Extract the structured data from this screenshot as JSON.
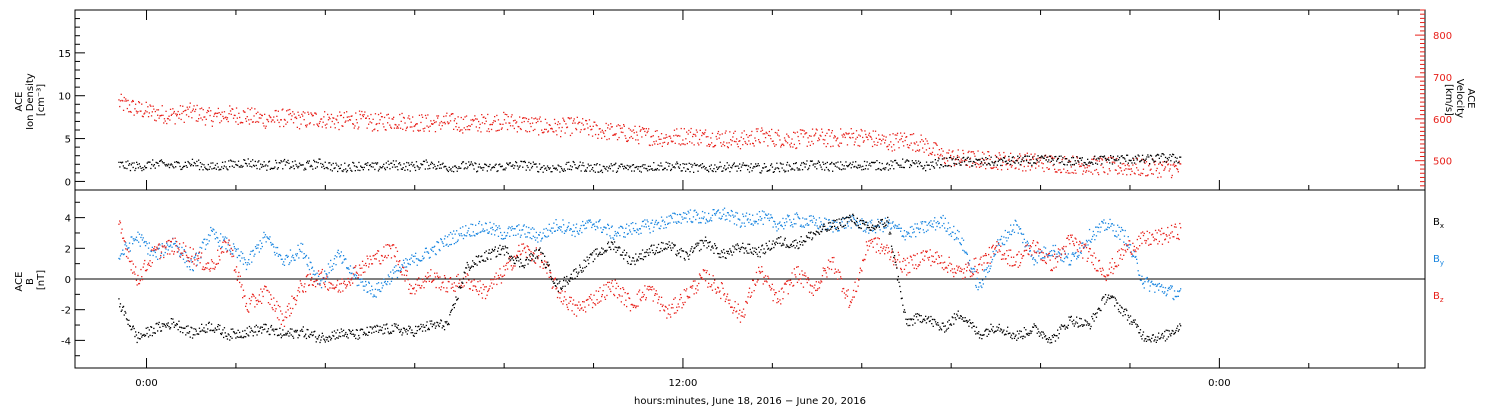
{
  "chart_data": [
    {
      "type": "scatter",
      "panel": "top",
      "ylabel_left": [
        "ACE",
        "Ion Density",
        "[cm⁻³]"
      ],
      "ylabel_right": [
        "ACE",
        "Velocity",
        "[km/s]"
      ],
      "ylim_left": [
        -1,
        20
      ],
      "ylim_right": [
        430,
        860
      ],
      "yticks_left": [
        0,
        5,
        10,
        15
      ],
      "yticks_right": [
        500,
        600,
        700,
        800
      ],
      "series": [
        {
          "axis": "left",
          "color": "#000000",
          "x": [
            -2,
            -1,
            0,
            1,
            2,
            3,
            4,
            5,
            6,
            7,
            8,
            9,
            10,
            11,
            12,
            13,
            14,
            15,
            16,
            17,
            18,
            19,
            20,
            21,
            22,
            23,
            24,
            25,
            26,
            27,
            28,
            29,
            30,
            31,
            32,
            33,
            34,
            35,
            36,
            37,
            38,
            39,
            40,
            41,
            42,
            43,
            44,
            45,
            46,
            47,
            48,
            49,
            50,
            51,
            52,
            53,
            54,
            55,
            56
          ],
          "y": [
            2.0,
            1.8,
            2.1,
            1.9,
            2.2,
            1.7,
            2.0,
            2.3,
            1.9,
            2.1,
            1.8,
            2.2,
            1.6,
            1.9,
            1.7,
            2.0,
            1.8,
            2.1,
            1.7,
            1.9,
            1.6,
            1.8,
            2.0,
            1.7,
            1.6,
            1.9,
            1.6,
            1.7,
            1.6,
            1.8,
            1.9,
            1.7,
            1.6,
            1.8,
            1.7,
            1.6,
            1.7,
            1.8,
            2.0,
            1.8,
            1.9,
            2.0,
            1.9,
            2.2,
            1.8,
            2.3,
            2.4,
            2.3,
            2.4,
            2.5,
            2.5,
            2.6,
            2.4,
            2.5,
            2.6,
            2.7,
            2.6,
            2.8,
            2.7
          ]
        },
        {
          "axis": "right",
          "color": "#e8201a",
          "x": [
            -2,
            -1,
            0,
            1,
            2,
            3,
            4,
            5,
            6,
            7,
            8,
            9,
            10,
            11,
            12,
            13,
            14,
            15,
            16,
            17,
            18,
            19,
            20,
            21,
            22,
            23,
            24,
            25,
            26,
            27,
            28,
            29,
            30,
            31,
            32,
            33,
            34,
            35,
            36,
            37,
            38,
            39,
            40,
            41,
            42,
            43,
            44,
            45,
            46,
            47,
            48,
            49,
            50,
            51,
            52,
            53,
            54,
            55,
            56
          ],
          "y": [
            640,
            625,
            615,
            610,
            618,
            605,
            612,
            608,
            600,
            604,
            598,
            602,
            596,
            600,
            592,
            598,
            594,
            590,
            595,
            588,
            592,
            596,
            590,
            584,
            580,
            585,
            575,
            570,
            565,
            560,
            555,
            562,
            558,
            555,
            550,
            560,
            556,
            552,
            558,
            554,
            560,
            556,
            545,
            552,
            540,
            512,
            506,
            504,
            502,
            500,
            498,
            495,
            493,
            490,
            488,
            486,
            485,
            483,
            482
          ]
        }
      ]
    },
    {
      "type": "scatter",
      "panel": "bottom",
      "ylabel": [
        "ACE",
        "B",
        "[nT]"
      ],
      "ylim": [
        -5.8,
        5.8
      ],
      "yticks": [
        -4,
        -2,
        0,
        2,
        4
      ],
      "legend": [
        {
          "label": "B",
          "sub": "x",
          "color": "#000000"
        },
        {
          "label": "B",
          "sub": "y",
          "color": "#1a86e0"
        },
        {
          "label": "B",
          "sub": "z",
          "color": "#e8201a"
        }
      ],
      "legend_position": "right",
      "series": [
        {
          "name": "Bx",
          "color": "#000000",
          "x": [
            -2,
            -1,
            0,
            1,
            2,
            3,
            4,
            5,
            6,
            7,
            8,
            9,
            10,
            11,
            12,
            13,
            14,
            15,
            16,
            17,
            18,
            19,
            20,
            21,
            22,
            23,
            24,
            25,
            26,
            27,
            28,
            29,
            30,
            31,
            32,
            33,
            34,
            35,
            36,
            37,
            38,
            39,
            40,
            41,
            42,
            43,
            44,
            45,
            46,
            47,
            48,
            49,
            50,
            51,
            52,
            53,
            54,
            55,
            56
          ],
          "y": [
            -1.5,
            -3.8,
            -3.2,
            -2.8,
            -3.5,
            -3.0,
            -3.6,
            -3.4,
            -3.2,
            -3.6,
            -3.4,
            -3.8,
            -3.5,
            -3.6,
            -3.3,
            -3.2,
            -3.4,
            -3.0,
            -2.9,
            0.8,
            1.5,
            2.0,
            1.0,
            1.8,
            -0.5,
            0.5,
            1.6,
            2.3,
            1.2,
            1.9,
            2.2,
            1.5,
            2.5,
            1.6,
            2.1,
            1.8,
            2.5,
            2.3,
            3.0,
            3.5,
            4.0,
            3.3,
            3.8,
            -2.8,
            -2.4,
            -3.2,
            -2.2,
            -3.6,
            -3.0,
            -3.7,
            -3.2,
            -3.9,
            -2.6,
            -3.0,
            -1.0,
            -2.2,
            -3.7,
            -3.8,
            -3.0
          ]
        },
        {
          "name": "By",
          "color": "#1a86e0",
          "x": [
            -2,
            -1,
            0,
            1,
            2,
            3,
            4,
            5,
            6,
            7,
            8,
            9,
            10,
            11,
            12,
            13,
            14,
            15,
            16,
            17,
            18,
            19,
            20,
            21,
            22,
            23,
            24,
            25,
            26,
            27,
            28,
            29,
            30,
            31,
            32,
            33,
            34,
            35,
            36,
            37,
            38,
            39,
            40,
            41,
            42,
            43,
            44,
            45,
            46,
            47,
            48,
            49,
            50,
            51,
            52,
            53,
            54,
            55,
            56
          ],
          "y": [
            1.5,
            2.8,
            1.6,
            2.5,
            0.8,
            3.0,
            2.2,
            1.0,
            2.8,
            1.2,
            2.0,
            -0.2,
            1.6,
            0.0,
            -0.8,
            0.4,
            1.2,
            1.8,
            2.6,
            3.2,
            3.4,
            3.0,
            3.2,
            2.8,
            3.6,
            3.2,
            3.7,
            3.0,
            3.3,
            3.5,
            3.8,
            4.2,
            4.0,
            4.3,
            3.8,
            4.1,
            3.6,
            3.9,
            3.7,
            3.5,
            3.8,
            3.4,
            3.6,
            3.0,
            3.4,
            3.8,
            2.6,
            -0.6,
            2.2,
            3.6,
            1.4,
            2.0,
            1.2,
            2.8,
            3.6,
            2.8,
            -0.2,
            -0.6,
            -1.0
          ]
        },
        {
          "name": "Bz",
          "color": "#e8201a",
          "x": [
            -2,
            -1,
            0,
            1,
            2,
            3,
            4,
            5,
            6,
            7,
            8,
            9,
            10,
            11,
            12,
            13,
            14,
            15,
            16,
            17,
            18,
            19,
            20,
            21,
            22,
            23,
            24,
            25,
            26,
            27,
            28,
            29,
            30,
            31,
            32,
            33,
            34,
            35,
            36,
            37,
            38,
            39,
            40,
            41,
            42,
            43,
            44,
            45,
            46,
            47,
            48,
            49,
            50,
            51,
            52,
            53,
            54,
            55,
            56
          ],
          "y": [
            3.5,
            0.0,
            1.8,
            2.2,
            1.6,
            0.8,
            2.4,
            -1.8,
            -0.8,
            -2.6,
            -0.4,
            0.2,
            -0.6,
            0.6,
            1.4,
            2.0,
            -0.6,
            0.2,
            -0.4,
            0.0,
            -0.8,
            0.4,
            2.0,
            1.4,
            -0.8,
            -2.0,
            -1.2,
            -0.4,
            -1.6,
            -0.6,
            -2.2,
            -1.0,
            0.2,
            -0.8,
            -2.4,
            0.6,
            -1.4,
            0.4,
            -0.6,
            1.2,
            -1.6,
            2.6,
            1.8,
            0.8,
            1.6,
            1.2,
            0.4,
            1.0,
            2.0,
            1.2,
            2.2,
            1.0,
            2.6,
            1.6,
            0.4,
            2.0,
            2.6,
            2.8,
            3.2
          ]
        }
      ]
    }
  ],
  "x_axis": {
    "ticks": [
      {
        "hour": 0,
        "label": "0:00"
      },
      {
        "hour": 12,
        "label": "12:00"
      },
      {
        "hour": 24,
        "label": "0:00"
      }
    ],
    "minor_step_hours": 2,
    "xlim_hours": [
      -1.6,
      28.6
    ],
    "data_end_hours": 22.3,
    "xlabel": "hours:minutes, June 18, 2016 − June 20, 2016"
  },
  "colors": {
    "black": "#000000",
    "red": "#e8201a",
    "blue": "#1a86e0"
  }
}
